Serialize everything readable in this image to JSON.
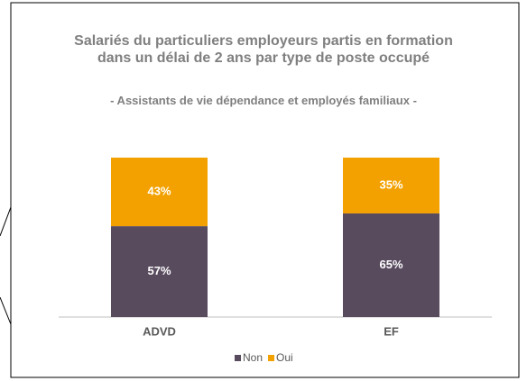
{
  "chart_data": {
    "type": "stacked-bar",
    "title": "Salariés du particuliers employeurs partis en formation dans un délai de 2 ans par type de poste occupé",
    "subtitle": "- Assistants de vie dépendance et employés familiaux -",
    "categories": [
      "ADVD",
      "EF"
    ],
    "series": [
      {
        "name": "Non",
        "color": "#584b5e",
        "values": [
          57,
          65
        ],
        "value_labels": [
          "57%",
          "65%"
        ]
      },
      {
        "name": "Oui",
        "color": "#f2a100",
        "values": [
          43,
          35
        ],
        "value_labels": [
          "43%",
          "35%"
        ]
      }
    ],
    "ylim": [
      0,
      100
    ],
    "legend": "bottom"
  }
}
